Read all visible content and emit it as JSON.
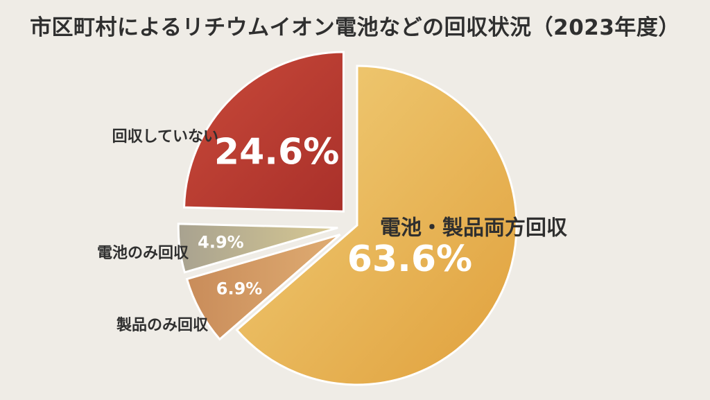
{
  "chart_data": {
    "type": "pie",
    "title": "市区町村によるリチウムイオン電池などの回収状況（2023年度）",
    "slices": [
      {
        "label": "電池・製品両方回収",
        "value": 63.6,
        "value_label": "63.6%",
        "color": "#e6b24e"
      },
      {
        "label": "製品のみ回収",
        "value": 6.9,
        "value_label": "6.9%",
        "color": "#d39a63"
      },
      {
        "label": "電池のみ回収",
        "value": 4.9,
        "value_label": "4.9%",
        "color": "#b8ac8c"
      },
      {
        "label": "回収していない",
        "value": 24.6,
        "value_label": "24.6%",
        "color": "#b93a2e"
      }
    ],
    "start": "12 o'clock",
    "direction": "clockwise"
  }
}
